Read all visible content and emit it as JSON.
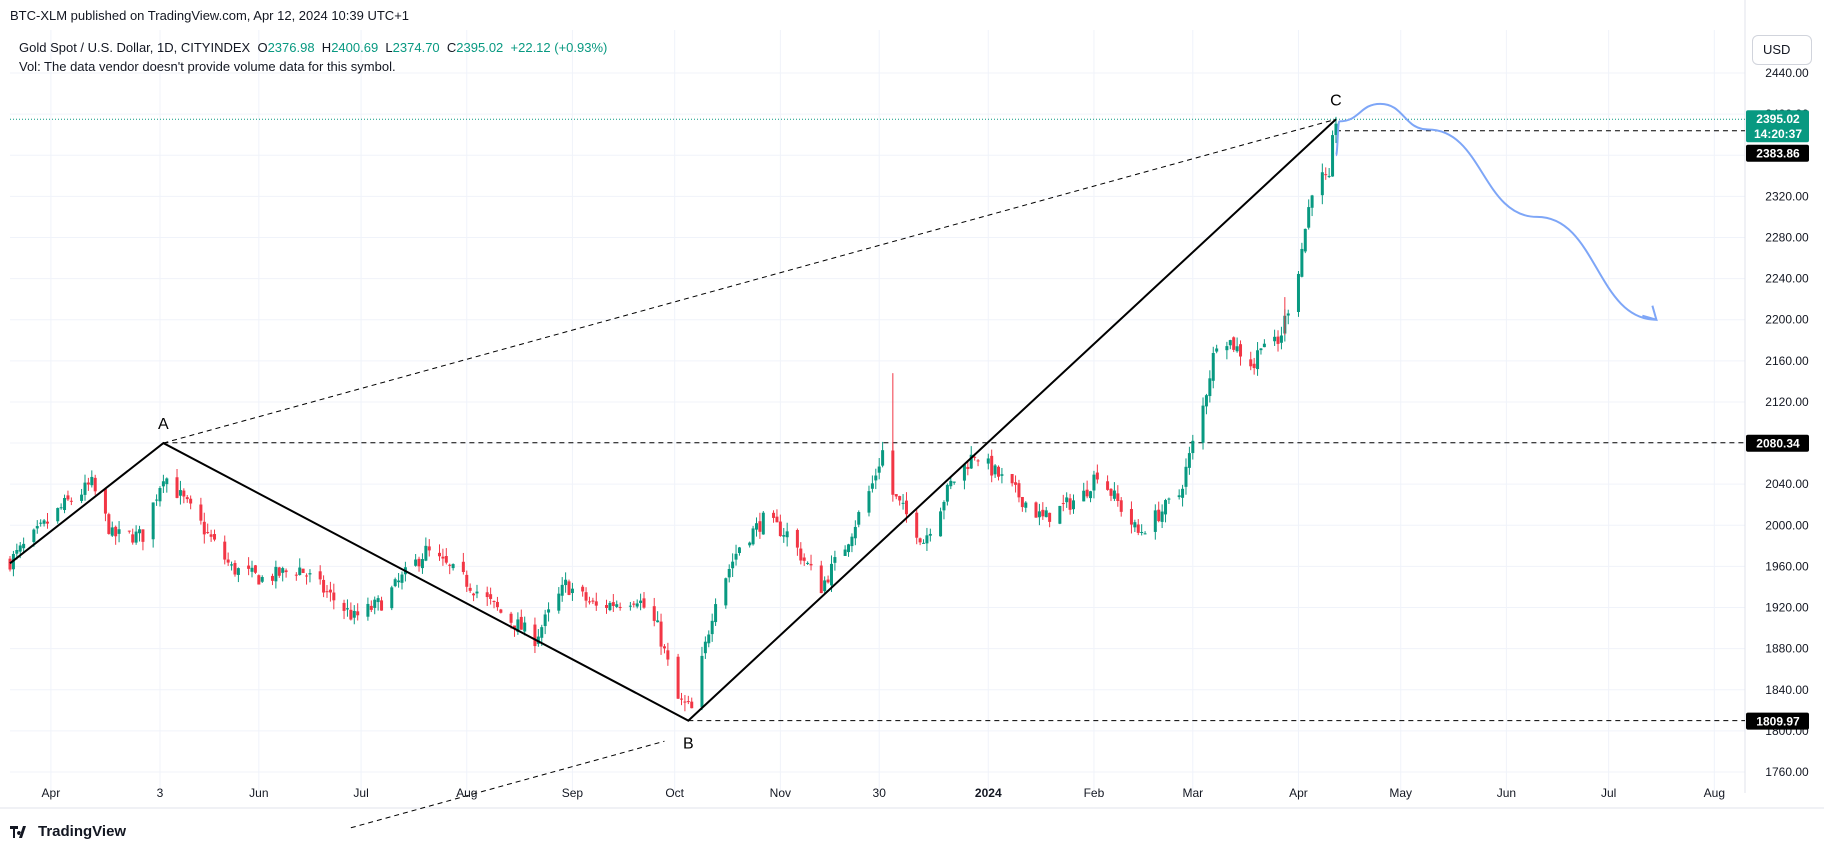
{
  "publication": "BTC-XLM published on TradingView.com, Apr 12, 2024 10:39 UTC+1",
  "legend": {
    "symbol": "Gold Spot / U.S. Dollar, 1D, CITYINDEX",
    "open_label": "O",
    "open": "2376.98",
    "high_label": "H",
    "high": "2400.69",
    "low_label": "L",
    "low": "2374.70",
    "close_label": "C",
    "close": "2395.02",
    "change": "+22.12 (+0.93%)",
    "volume_note": "Vol: The data vendor doesn't provide volume data for this symbol."
  },
  "currency": "USD",
  "footer_brand": "TradingView",
  "colors": {
    "up": "#089981",
    "down": "#f23645",
    "wave": "#000000",
    "projection": "#7ea6f7",
    "last_price_bg": "#089981",
    "label_bg": "#000000"
  },
  "price_tags": {
    "last_price": "2395.02",
    "countdown": "14:20:37",
    "level_c": "2383.86",
    "level_a": "2080.34",
    "level_b": "1809.97"
  },
  "wave_labels": {
    "a": "A",
    "b": "B",
    "c": "C"
  },
  "chart_data": {
    "type": "candlestick",
    "title": "Gold Spot / U.S. Dollar, 1D, CITYINDEX",
    "yaxis_ticks": [
      "2440.00",
      "2400.00",
      "2360.00",
      "2320.00",
      "2280.00",
      "2240.00",
      "2200.00",
      "2160.00",
      "2120.00",
      "2080.00",
      "2040.00",
      "2000.00",
      "1960.00",
      "1920.00",
      "1880.00",
      "1840.00",
      "1800.00",
      "1760.00"
    ],
    "xaxis_ticks": [
      {
        "label": "Apr",
        "date": "2023-04-01"
      },
      {
        "label": "3",
        "date": "2023-05-03"
      },
      {
        "label": "Jun",
        "date": "2023-06-01"
      },
      {
        "label": "Jul",
        "date": "2023-07-01"
      },
      {
        "label": "Aug",
        "date": "2023-08-01"
      },
      {
        "label": "Sep",
        "date": "2023-09-01"
      },
      {
        "label": "Oct",
        "date": "2023-10-01"
      },
      {
        "label": "Nov",
        "date": "2023-11-01"
      },
      {
        "label": "30",
        "date": "2023-11-30"
      },
      {
        "label": "2024",
        "date": "2024-01-01",
        "bold": true
      },
      {
        "label": "Feb",
        "date": "2024-02-01"
      },
      {
        "label": "Mar",
        "date": "2024-03-01"
      },
      {
        "label": "Apr",
        "date": "2024-04-01"
      },
      {
        "label": "May",
        "date": "2024-05-01"
      },
      {
        "label": "Jun",
        "date": "2024-06-01"
      },
      {
        "label": "Jul",
        "date": "2024-07-01"
      },
      {
        "label": "Aug",
        "date": "2024-08-01"
      }
    ],
    "ylim": [
      1740,
      2460
    ],
    "close_series": [
      {
        "date": "2023-03-20",
        "close": 1965
      },
      {
        "date": "2023-04-05",
        "close": 2020
      },
      {
        "date": "2023-04-13",
        "close": 2040
      },
      {
        "date": "2023-04-19",
        "close": 1990
      },
      {
        "date": "2023-04-28",
        "close": 1990
      },
      {
        "date": "2023-05-04",
        "close": 2050
      },
      {
        "date": "2023-05-12",
        "close": 2015
      },
      {
        "date": "2023-05-24",
        "close": 1958
      },
      {
        "date": "2023-06-02",
        "close": 1948
      },
      {
        "date": "2023-06-13",
        "close": 1958
      },
      {
        "date": "2023-06-29",
        "close": 1910
      },
      {
        "date": "2023-07-07",
        "close": 1925
      },
      {
        "date": "2023-07-20",
        "close": 1975
      },
      {
        "date": "2023-08-01",
        "close": 1945
      },
      {
        "date": "2023-08-11",
        "close": 1915
      },
      {
        "date": "2023-08-21",
        "close": 1890
      },
      {
        "date": "2023-08-30",
        "close": 1942
      },
      {
        "date": "2023-09-08",
        "close": 1920
      },
      {
        "date": "2023-09-20",
        "close": 1930
      },
      {
        "date": "2023-09-26",
        "close": 1900
      },
      {
        "date": "2023-10-02",
        "close": 1830
      },
      {
        "date": "2023-10-06",
        "close": 1820
      },
      {
        "date": "2023-10-13",
        "close": 1930
      },
      {
        "date": "2023-10-20",
        "close": 1980
      },
      {
        "date": "2023-10-27",
        "close": 2005
      },
      {
        "date": "2023-11-03",
        "close": 1992
      },
      {
        "date": "2023-11-13",
        "close": 1940
      },
      {
        "date": "2023-11-20",
        "close": 1980
      },
      {
        "date": "2023-11-28",
        "close": 2040
      },
      {
        "date": "2023-12-01",
        "close": 2072
      },
      {
        "date": "2023-12-04",
        "close": 2030
      },
      {
        "date": "2023-12-13",
        "close": 1985
      },
      {
        "date": "2023-12-21",
        "close": 2040
      },
      {
        "date": "2023-12-28",
        "close": 2070
      },
      {
        "date": "2024-01-05",
        "close": 2045
      },
      {
        "date": "2024-01-17",
        "close": 2006
      },
      {
        "date": "2024-01-29",
        "close": 2030
      },
      {
        "date": "2024-02-02",
        "close": 2052
      },
      {
        "date": "2024-02-14",
        "close": 1992
      },
      {
        "date": "2024-02-26",
        "close": 2030
      },
      {
        "date": "2024-03-04",
        "close": 2115
      },
      {
        "date": "2024-03-08",
        "close": 2180
      },
      {
        "date": "2024-03-11",
        "close": 2182
      },
      {
        "date": "2024-03-19",
        "close": 2155
      },
      {
        "date": "2024-03-21",
        "close": 2180
      },
      {
        "date": "2024-03-26",
        "close": 2175
      },
      {
        "date": "2024-04-01",
        "close": 2250
      },
      {
        "date": "2024-04-05",
        "close": 2328
      },
      {
        "date": "2024-04-08",
        "close": 2338
      },
      {
        "date": "2024-04-10",
        "close": 2332
      },
      {
        "date": "2024-04-11",
        "close": 2372
      },
      {
        "date": "2024-04-12",
        "close": 2395
      }
    ],
    "abc_wave": [
      {
        "label": "A",
        "date": "2023-05-04",
        "price": 2080
      },
      {
        "label": "B",
        "date": "2023-10-05",
        "price": 1810
      },
      {
        "label": "C",
        "date": "2024-04-12",
        "price": 2395
      }
    ],
    "wave_start": {
      "date": "2023-03-20",
      "price": 1963
    },
    "horizontal_levels": [
      2383.86,
      2080.34,
      1809.97
    ],
    "projection_curve": [
      {
        "date": "2024-04-12",
        "price": 2360
      },
      {
        "date": "2024-04-13",
        "price": 2393
      },
      {
        "date": "2024-04-25",
        "price": 2410
      },
      {
        "date": "2024-05-09",
        "price": 2385
      },
      {
        "date": "2024-06-10",
        "price": 2300
      },
      {
        "date": "2024-07-15",
        "price": 2200
      }
    ]
  }
}
